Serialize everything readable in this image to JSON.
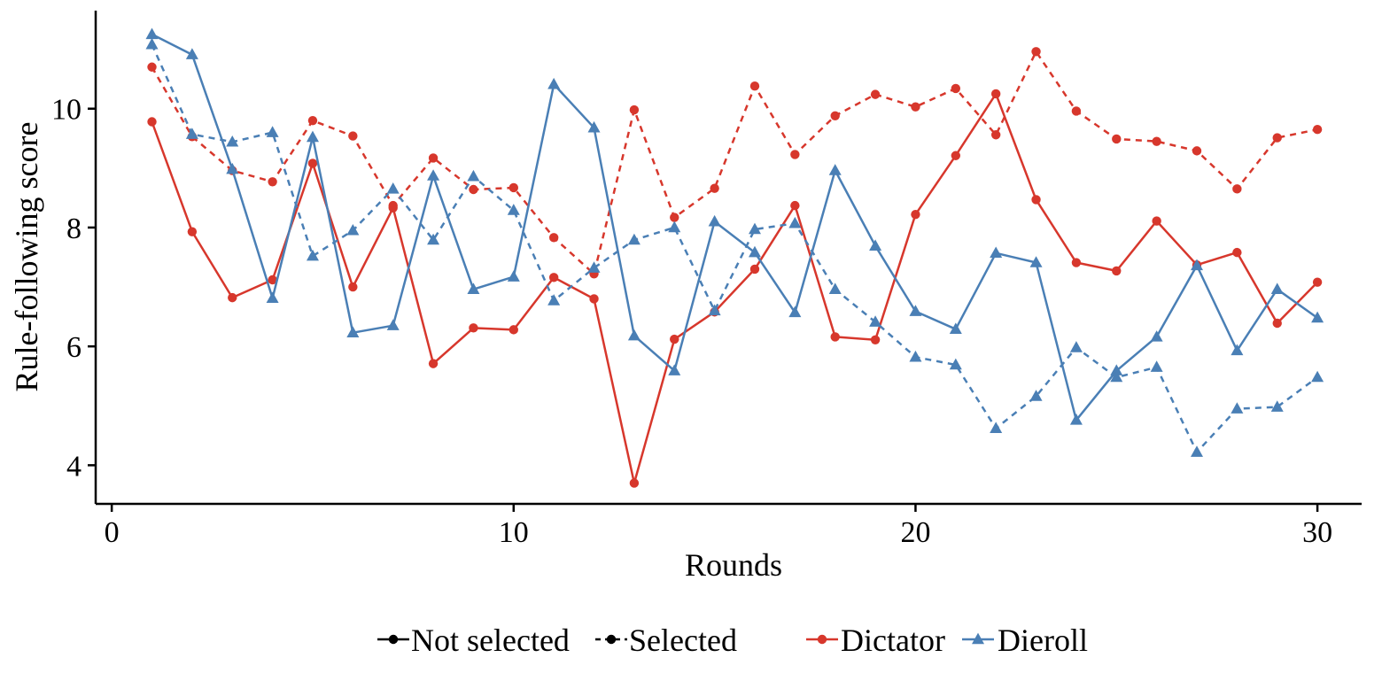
{
  "chart_data": {
    "type": "line",
    "xlabel": "Rounds",
    "ylabel": "Rule-following score",
    "xlim": [
      -0.4,
      31.1
    ],
    "ylim": [
      3.35,
      11.65
    ],
    "x_ticks": [
      0,
      10,
      20,
      30
    ],
    "y_ticks": [
      4,
      6,
      8,
      10
    ],
    "grid": false,
    "legend_position": "bottom",
    "legend_linetype": [
      {
        "label": "Not selected",
        "dash": "solid"
      },
      {
        "label": "Selected",
        "dash": "dotted"
      }
    ],
    "legend_group": [
      {
        "label": "Dictator",
        "color": "#d7372c",
        "marker": "circle"
      },
      {
        "label": "Dieroll",
        "color": "#4a7fb5",
        "marker": "triangle"
      }
    ],
    "x": [
      1,
      2,
      3,
      4,
      5,
      6,
      7,
      8,
      9,
      10,
      11,
      12,
      13,
      14,
      15,
      16,
      17,
      18,
      19,
      20,
      21,
      22,
      23,
      24,
      25,
      26,
      27,
      28,
      29,
      30
    ],
    "series": [
      {
        "group": "Dictator",
        "dash": "solid",
        "color": "#d7372c",
        "marker": "circle",
        "values": [
          9.78,
          7.93,
          6.82,
          7.12,
          9.08,
          7.0,
          8.33,
          5.71,
          6.31,
          6.28,
          7.16,
          6.8,
          3.7,
          6.12,
          6.58,
          7.3,
          8.37,
          6.16,
          6.11,
          8.22,
          9.21,
          10.25,
          8.47,
          7.41,
          7.27,
          8.11,
          7.37,
          7.58,
          6.39,
          7.08
        ]
      },
      {
        "group": "Dictator",
        "dash": "dotted",
        "color": "#d7372c",
        "marker": "circle",
        "values": [
          10.7,
          9.53,
          8.96,
          8.77,
          9.8,
          9.54,
          8.37,
          9.17,
          8.64,
          8.67,
          7.83,
          7.22,
          9.98,
          8.17,
          8.66,
          10.38,
          9.23,
          9.88,
          10.24,
          10.03,
          10.34,
          9.56,
          10.96,
          9.96,
          9.49,
          9.45,
          9.29,
          8.65,
          9.51,
          9.65
        ]
      },
      {
        "group": "Dieroll",
        "dash": "solid",
        "color": "#4a7fb5",
        "marker": "triangle",
        "values": [
          11.25,
          10.91,
          8.98,
          6.81,
          9.52,
          6.23,
          6.35,
          8.87,
          6.96,
          7.17,
          10.41,
          9.68,
          6.18,
          5.59,
          8.1,
          7.58,
          6.57,
          8.96,
          7.69,
          6.59,
          6.29,
          7.57,
          7.41,
          4.76,
          5.59,
          6.16,
          7.36,
          5.93,
          6.96,
          6.48
        ]
      },
      {
        "group": "Dieroll",
        "dash": "dotted",
        "color": "#4a7fb5",
        "marker": "triangle",
        "values": [
          11.08,
          9.57,
          9.44,
          9.6,
          7.52,
          7.95,
          8.65,
          7.79,
          8.86,
          8.29,
          6.77,
          7.32,
          7.79,
          8.0,
          6.6,
          7.97,
          8.07,
          6.96,
          6.41,
          5.82,
          5.69,
          4.62,
          5.16,
          5.98,
          5.48,
          5.65,
          4.22,
          4.95,
          4.98,
          5.48
        ]
      }
    ]
  }
}
